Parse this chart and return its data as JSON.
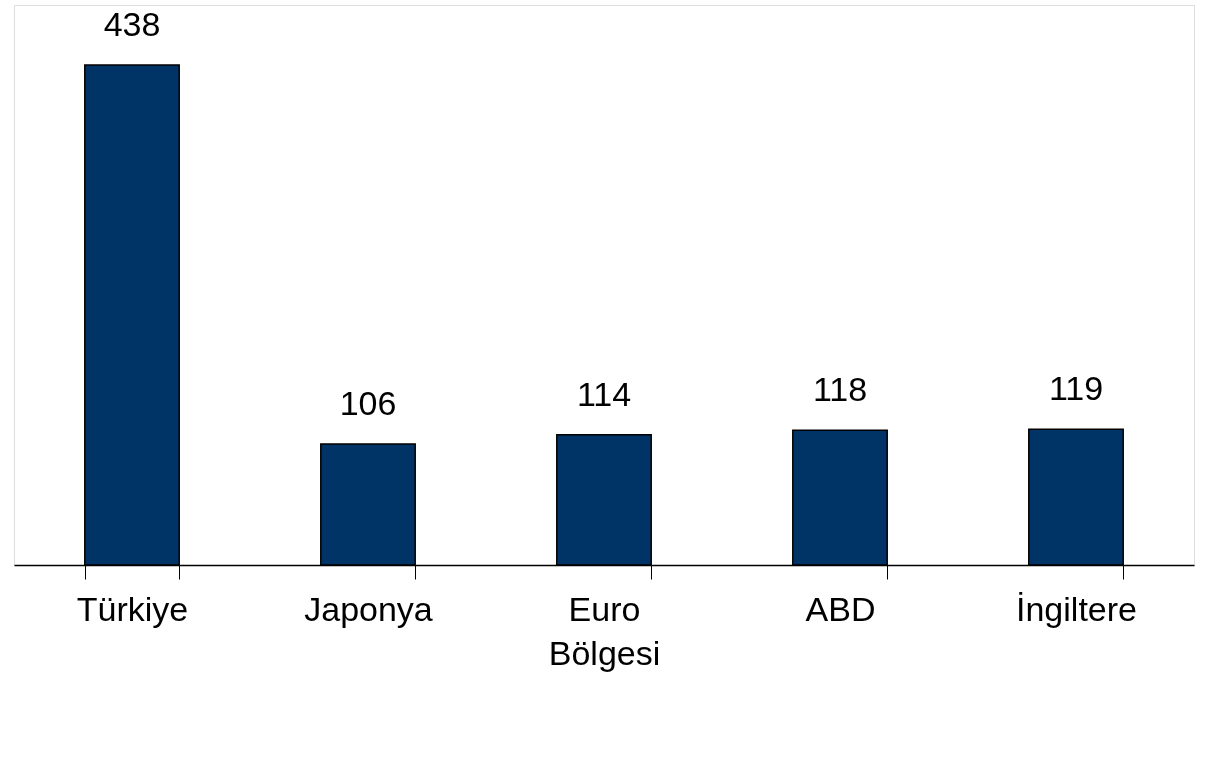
{
  "chart_data": {
    "type": "bar",
    "categories": [
      "Türkiye",
      "Japonya",
      "Euro Bölgesi",
      "ABD",
      "İngiltere"
    ],
    "values": [
      438,
      106,
      114,
      118,
      119
    ],
    "color": "#003366",
    "data_labels": true
  }
}
